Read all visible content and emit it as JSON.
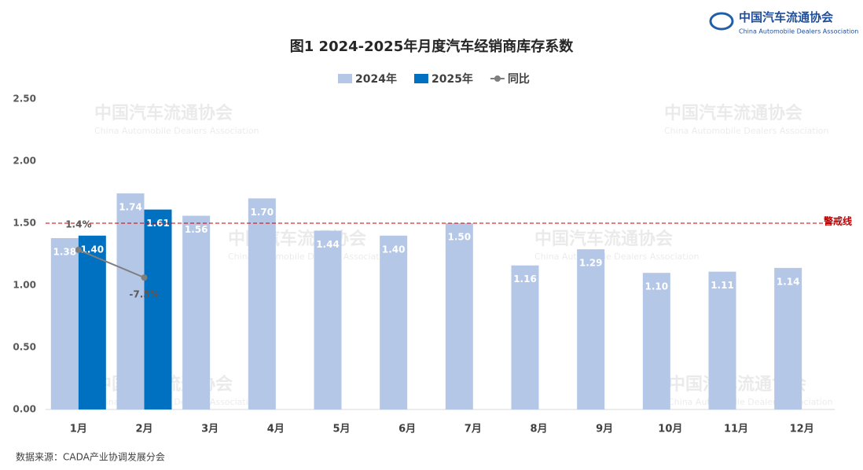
{
  "logo": {
    "name": "中国汽车流通协会",
    "english": "China Automobile Dealers Association"
  },
  "source": "数据来源：CADA产业协调发展分会",
  "chart_data": {
    "type": "bar",
    "title": "图1  2024-2025年月度汽车经销商库存系数",
    "categories": [
      "1月",
      "2月",
      "3月",
      "4月",
      "5月",
      "6月",
      "7月",
      "8月",
      "9月",
      "10月",
      "11月",
      "12月"
    ],
    "series": [
      {
        "name": "2024年",
        "color": "#b4c7e7",
        "values": [
          1.38,
          1.74,
          1.56,
          1.7,
          1.44,
          1.4,
          1.5,
          1.16,
          1.29,
          1.1,
          1.11,
          1.14
        ],
        "value_labels": [
          "1.38",
          "1.74",
          "1.56",
          "1.70",
          "1.44",
          "1.40",
          "1.50",
          "1.16",
          "1.29",
          "1.10",
          "1.11",
          "1.14"
        ]
      },
      {
        "name": "2025年",
        "color": "#0070c0",
        "values": [
          1.4,
          1.61,
          null,
          null,
          null,
          null,
          null,
          null,
          null,
          null,
          null,
          null
        ],
        "value_labels": [
          "1.40",
          "1.61",
          null,
          null,
          null,
          null,
          null,
          null,
          null,
          null,
          null,
          null
        ]
      },
      {
        "name": "同比",
        "type": "line",
        "axis": "y2",
        "color": "#7f7f7f",
        "values": [
          1.4,
          -7.5,
          null,
          null,
          null,
          null,
          null,
          null,
          null,
          null,
          null,
          null
        ],
        "value_labels": [
          "1.4%",
          "-7.5%",
          null,
          null,
          null,
          null,
          null,
          null,
          null,
          null,
          null,
          null
        ]
      }
    ],
    "ylim": [
      0,
      2.5
    ],
    "yticks": [
      {
        "value": 0,
        "label": "0.00"
      },
      {
        "value": 0.5,
        "label": "0.50"
      },
      {
        "value": 1,
        "label": "1.00"
      },
      {
        "value": 1.5,
        "label": "1.50"
      },
      {
        "value": 2,
        "label": "2.00"
      },
      {
        "value": 2.5,
        "label": "2.50"
      }
    ],
    "y2lim": [
      -50,
      50
    ],
    "reference_line": {
      "value": 1.5,
      "label": "警戒线",
      "color": "#c00000"
    },
    "legend": "top"
  }
}
